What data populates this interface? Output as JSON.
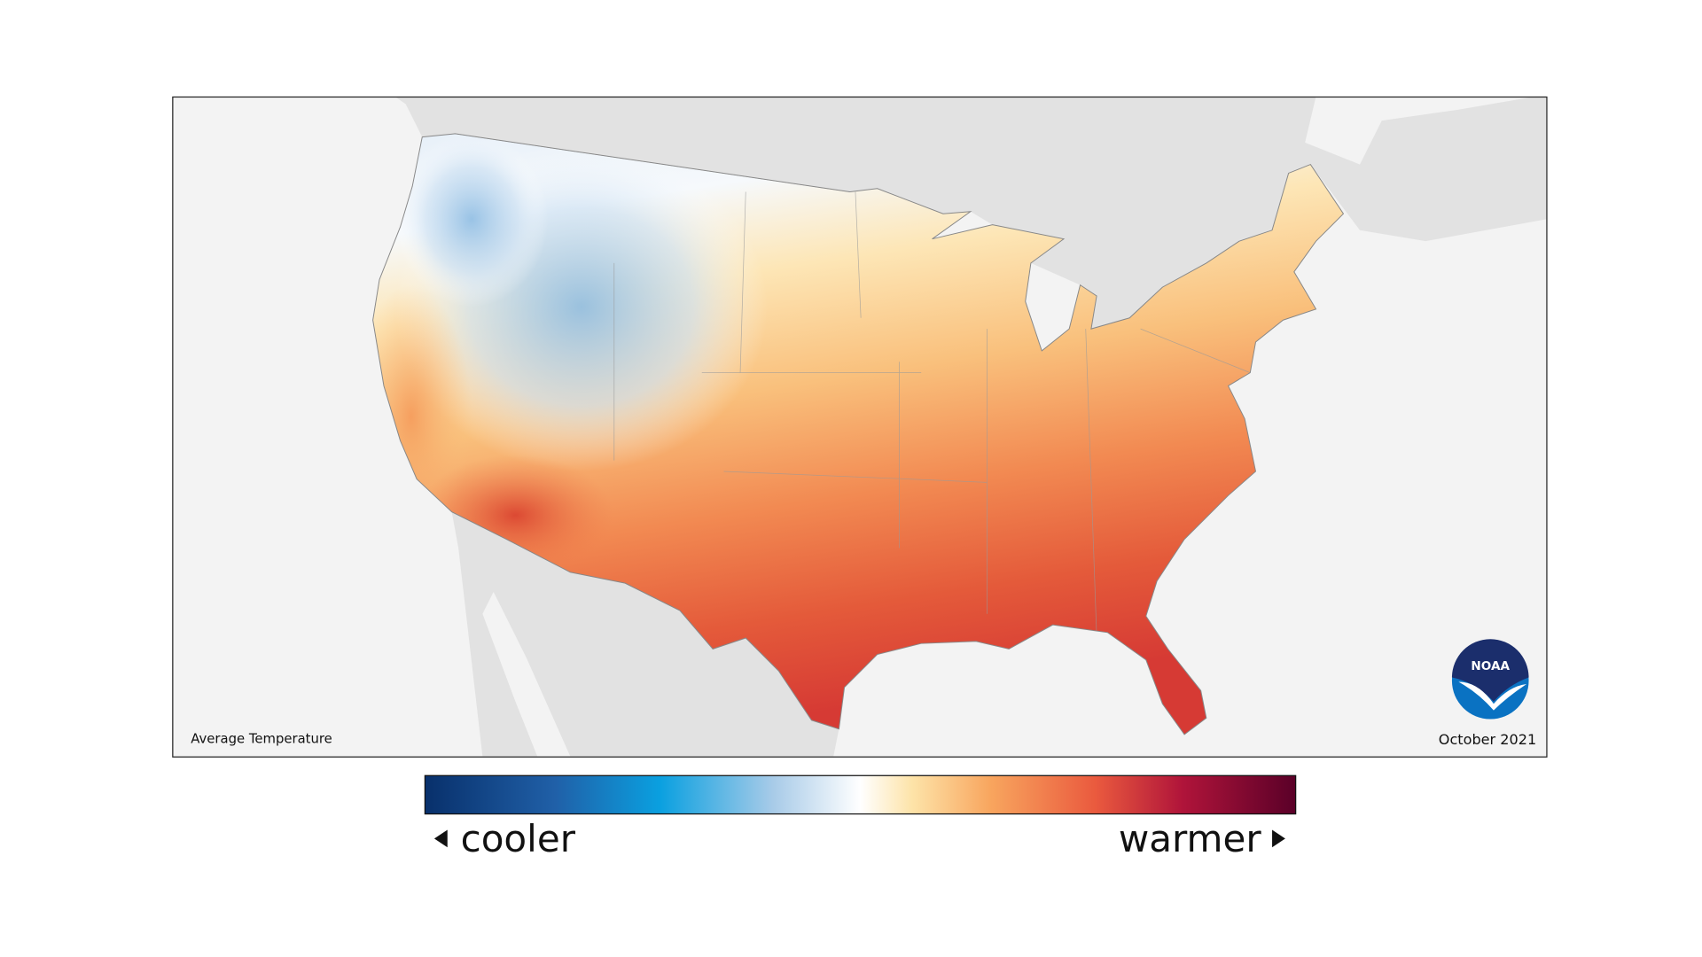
{
  "map": {
    "title": "Average Temperature",
    "date": "October 2021"
  },
  "legend": {
    "low_label": "cooler",
    "high_label": "warmer"
  },
  "logo": {
    "text": "NOAA"
  }
}
